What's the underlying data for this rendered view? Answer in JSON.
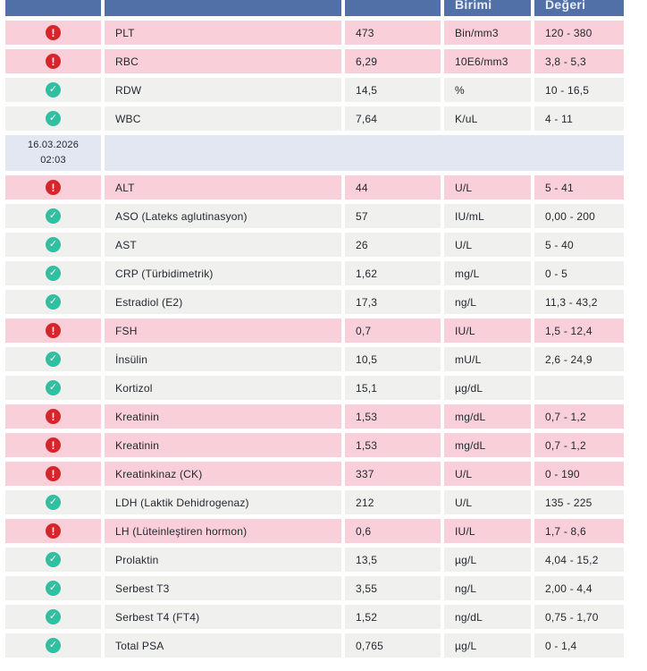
{
  "colors": {
    "header_bg": "#5170a8",
    "abnormal_row_bg": "#f9d0da",
    "normal_row_bg": "#f0f1ef",
    "date_row_bg": "#e3e7f1",
    "alert_icon_bg": "#d7252c",
    "ok_icon_bg": "#31bfa2",
    "text": "#24272e",
    "header_text": "#e9edf6"
  },
  "icons": {
    "alert_glyph": "!",
    "ok_glyph": "✓"
  },
  "table": {
    "header_labels": [
      "",
      "",
      "",
      "Birimi",
      "Değeri"
    ],
    "rows": [
      {
        "type": "test",
        "status": "alert",
        "name": "PLT",
        "value": "473",
        "unit": "Bin/mm3",
        "reference": "120 - 380"
      },
      {
        "type": "test",
        "status": "alert",
        "name": "RBC",
        "value": "6,29",
        "unit": "10E6/mm3",
        "reference": "3,8 - 5,3"
      },
      {
        "type": "test",
        "status": "ok",
        "name": "RDW",
        "value": "14,5",
        "unit": "%",
        "reference": "10 - 16,5"
      },
      {
        "type": "test",
        "status": "ok",
        "name": "WBC",
        "value": "7,64",
        "unit": "K/uL",
        "reference": "4 - 11"
      },
      {
        "type": "date",
        "date": "16.03.2026",
        "time": "02:03"
      },
      {
        "type": "test",
        "status": "alert",
        "name": "ALT",
        "value": "44",
        "unit": "U/L",
        "reference": "5 - 41"
      },
      {
        "type": "test",
        "status": "ok",
        "name": "ASO (Lateks aglutinasyon)",
        "value": "57",
        "unit": "IU/mL",
        "reference": "0,00 - 200"
      },
      {
        "type": "test",
        "status": "ok",
        "name": "AST",
        "value": "26",
        "unit": "U/L",
        "reference": "5 - 40"
      },
      {
        "type": "test",
        "status": "ok",
        "name": "CRP (Türbidimetrik)",
        "value": "1,62",
        "unit": "mg/L",
        "reference": "0 - 5"
      },
      {
        "type": "test",
        "status": "ok",
        "name": "Estradiol (E2)",
        "value": "17,3",
        "unit": "ng/L",
        "reference": "11,3 - 43,2"
      },
      {
        "type": "test",
        "status": "alert",
        "name": "FSH",
        "value": "0,7",
        "unit": "IU/L",
        "reference": "1,5 - 12,4"
      },
      {
        "type": "test",
        "status": "ok",
        "name": "İnsülin",
        "value": "10,5",
        "unit": "mU/L",
        "reference": "2,6 - 24,9"
      },
      {
        "type": "test",
        "status": "ok",
        "name": "Kortizol",
        "value": "15,1",
        "unit": "µg/dL",
        "reference": ""
      },
      {
        "type": "test",
        "status": "alert",
        "name": "Kreatinin",
        "value": "1,53",
        "unit": "mg/dL",
        "reference": "0,7 - 1,2"
      },
      {
        "type": "test",
        "status": "alert",
        "name": "Kreatinin",
        "value": "1,53",
        "unit": "mg/dL",
        "reference": "0,7 - 1,2"
      },
      {
        "type": "test",
        "status": "alert",
        "name": "Kreatinkinaz (CK)",
        "value": "337",
        "unit": "U/L",
        "reference": "0 - 190"
      },
      {
        "type": "test",
        "status": "ok",
        "name": "LDH (Laktik Dehidrogenaz)",
        "value": "212",
        "unit": "U/L",
        "reference": "135 - 225"
      },
      {
        "type": "test",
        "status": "alert",
        "name": "LH (Lüteinleştiren hormon)",
        "value": "0,6",
        "unit": "IU/L",
        "reference": "1,7 - 8,6"
      },
      {
        "type": "test",
        "status": "ok",
        "name": "Prolaktin",
        "value": "13,5",
        "unit": "µg/L",
        "reference": "4,04 - 15,2"
      },
      {
        "type": "test",
        "status": "ok",
        "name": "Serbest T3",
        "value": "3,55",
        "unit": "ng/L",
        "reference": "2,00 - 4,4"
      },
      {
        "type": "test",
        "status": "ok",
        "name": "Serbest T4 (FT4)",
        "value": "1,52",
        "unit": "ng/dL",
        "reference": "0,75 - 1,70"
      },
      {
        "type": "test",
        "status": "ok",
        "name": "Total PSA",
        "value": "0,765",
        "unit": "µg/L",
        "reference": "0 - 1,4"
      }
    ]
  }
}
